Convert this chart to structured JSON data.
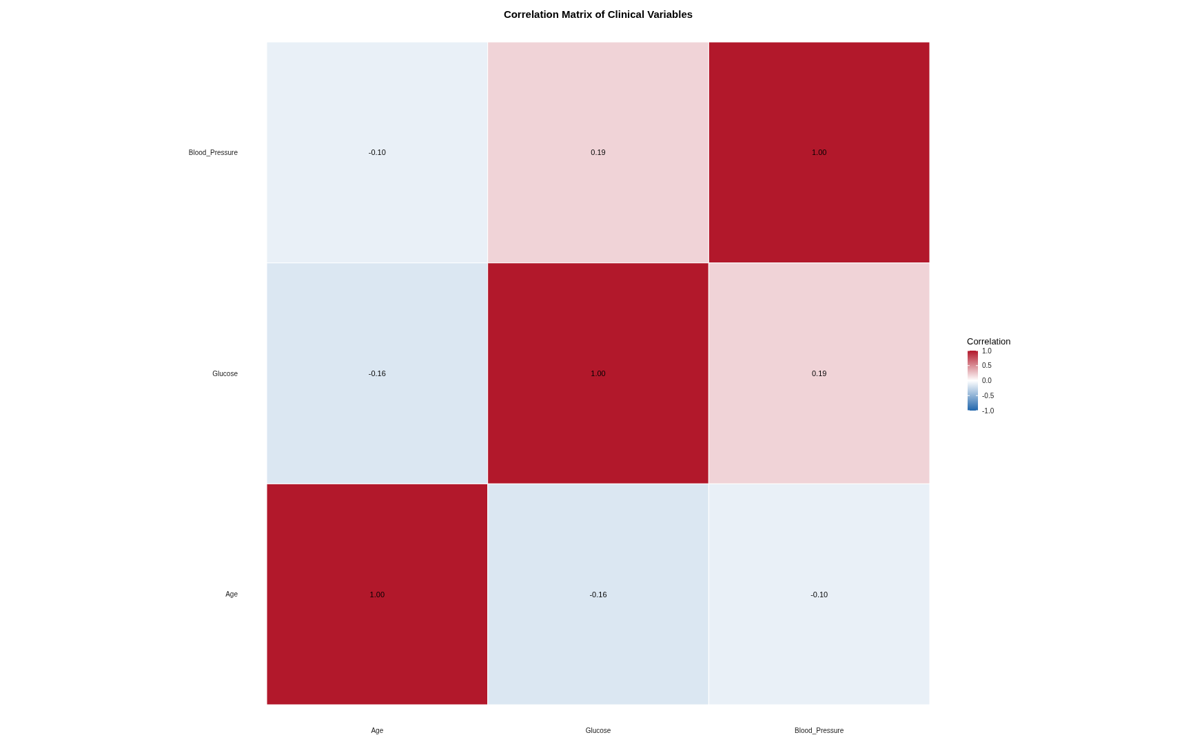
{
  "chart_data": {
    "type": "heatmap",
    "title": "Correlation Matrix of Clinical Variables",
    "categories": [
      "Age",
      "Glucose",
      "Blood_Pressure"
    ],
    "y_categories": [
      "Blood_Pressure",
      "Glucose",
      "Age"
    ],
    "cells": [
      [
        -0.1,
        0.19,
        1.0
      ],
      [
        -0.16,
        1.0,
        0.19
      ],
      [
        1.0,
        -0.16,
        -0.1
      ]
    ],
    "cell_labels": [
      [
        "-0.10",
        "0.19",
        "1.00"
      ],
      [
        "-0.16",
        "1.00",
        "0.19"
      ],
      [
        "1.00",
        "-0.16",
        "-0.10"
      ]
    ],
    "legend_title": "Correlation",
    "clim": [
      -1,
      1
    ],
    "cticks": [
      {
        "value": 1,
        "label": "1.0"
      },
      0.5,
      {
        "value": 0,
        "label": "0.0"
      },
      -0.5,
      {
        "value": -1,
        "label": "-1.0"
      }
    ]
  }
}
